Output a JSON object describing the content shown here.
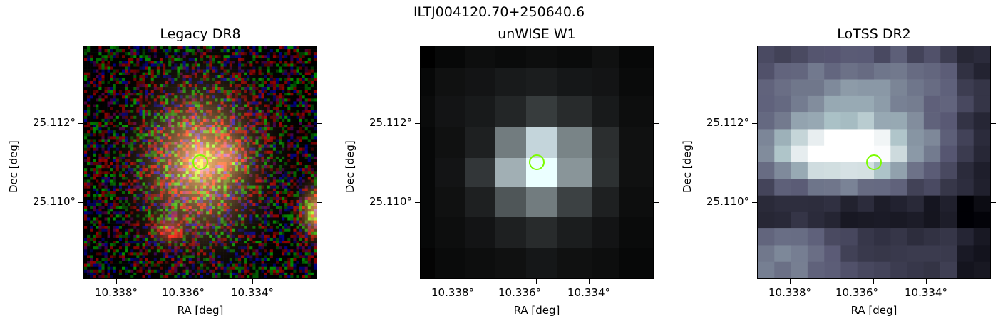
{
  "figure": {
    "title": "ILTJ004120.70+250640.6",
    "marker_color": "#7cfc00"
  },
  "panels": [
    {
      "id": "legacy",
      "title": "Legacy DR8",
      "xlabel": "RA [deg]",
      "ylabel": "Dec [deg]",
      "xticks": [
        "10.338°",
        "10.336°",
        "10.334°"
      ],
      "yticks": [
        "25.112°",
        "25.110°"
      ],
      "image": "optical-rgb-galaxy"
    },
    {
      "id": "unwise",
      "title": "unWISE W1",
      "xlabel": "RA [deg]",
      "ylabel": "Dec [deg]",
      "xticks": [
        "10.338°",
        "10.336°",
        "10.334°"
      ],
      "yticks": [
        "25.112°",
        "25.110°"
      ],
      "image": "infrared-grayscale"
    },
    {
      "id": "lotss",
      "title": "LoTSS DR2",
      "xlabel": "RA [deg]",
      "ylabel": "Dec [deg]",
      "xticks": [
        "10.338°",
        "10.336°",
        "10.334°"
      ],
      "yticks": [
        "25.112°",
        "25.110°"
      ],
      "image": "radio-bone"
    }
  ]
}
